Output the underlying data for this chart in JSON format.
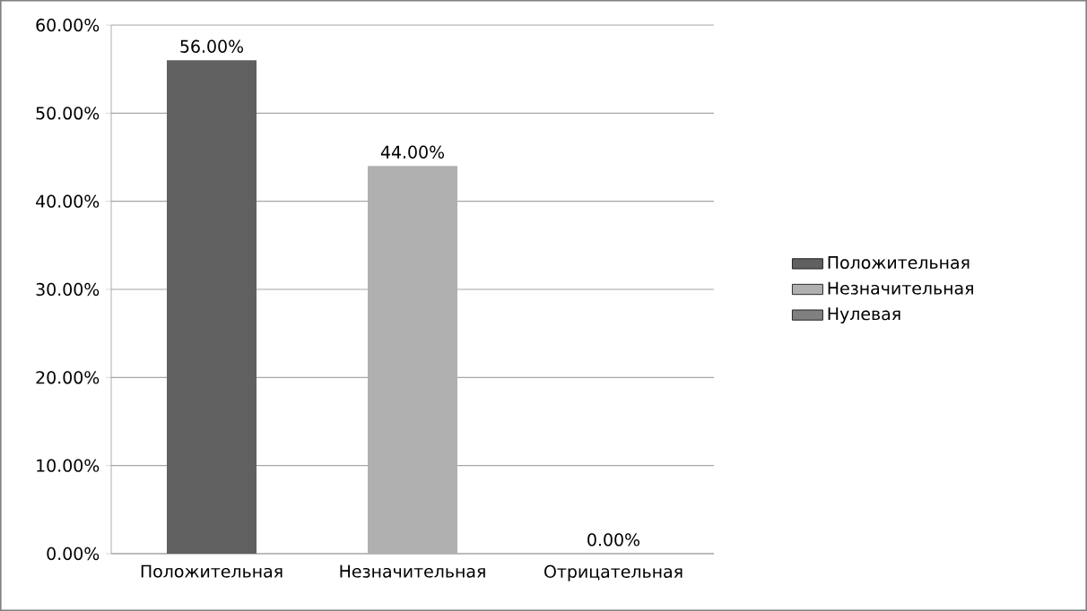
{
  "chart_data": {
    "type": "bar",
    "categories": [
      "Положительная",
      "Незначительная",
      "Отрицательная"
    ],
    "series": [
      {
        "name": "Положительная",
        "color": "#606060",
        "values": [
          56,
          null,
          null
        ],
        "value_labels": [
          "56.00%",
          null,
          null
        ]
      },
      {
        "name": "Незначительная",
        "color": "#b0b0b0",
        "values": [
          null,
          44,
          null
        ],
        "value_labels": [
          null,
          "44.00%",
          null
        ]
      },
      {
        "name": "Нулевая",
        "color": "#808080",
        "values": [
          null,
          null,
          0
        ],
        "value_labels": [
          null,
          null,
          "0.00%"
        ]
      }
    ],
    "ylim": [
      0,
      60
    ],
    "yticks": [
      {
        "value": 0,
        "label": "0.00%"
      },
      {
        "value": 10,
        "label": "10.00%"
      },
      {
        "value": 20,
        "label": "20.00%"
      },
      {
        "value": 30,
        "label": "30.00%"
      },
      {
        "value": 40,
        "label": "40.00%"
      },
      {
        "value": 50,
        "label": "50.00%"
      },
      {
        "value": 60,
        "label": "60.00%"
      }
    ],
    "grid": "y",
    "legend": "right"
  }
}
